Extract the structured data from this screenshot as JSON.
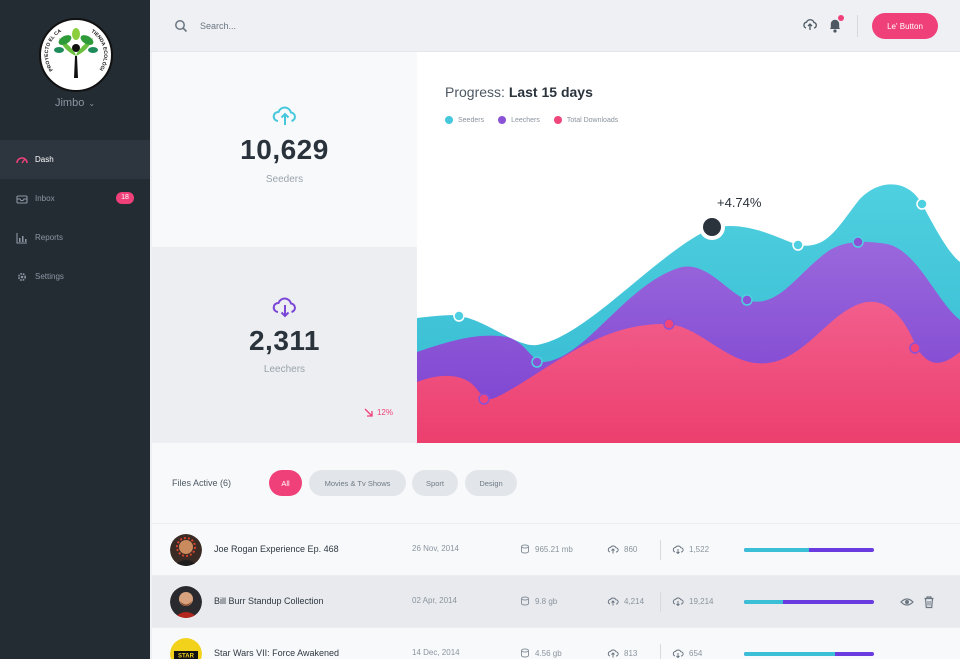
{
  "sidebar": {
    "logo_text_left": "PROYECTO EL CASAR",
    "logo_text_right": "TIENDA ECOLÓGICA",
    "username": "Jimbo",
    "items": [
      {
        "label": "Dash",
        "icon": "dashboard-icon",
        "active": true
      },
      {
        "label": "Inbox",
        "icon": "inbox-icon",
        "badge": "18"
      },
      {
        "label": "Reports",
        "icon": "reports-icon"
      },
      {
        "label": "Settings",
        "icon": "gear-icon"
      }
    ]
  },
  "topbar": {
    "search_placeholder": "Search...",
    "button_label": "Le' Button"
  },
  "stats": {
    "seeders": {
      "value": "10,629",
      "label": "Seeders"
    },
    "leechers": {
      "value": "2,311",
      "label": "Leechers",
      "trend": "12%"
    }
  },
  "chart_data": {
    "type": "area",
    "title_prefix": "Progress:",
    "title_main": "Last 15 days",
    "annotation": "+4.74%",
    "series": [
      {
        "name": "Seeders",
        "color": "#45c8dc"
      },
      {
        "name": "Leechers",
        "color": "#8a52d6"
      },
      {
        "name": "Total Downloads",
        "color": "#f0457b"
      }
    ]
  },
  "files": {
    "title": "Files Active (6)",
    "filters": [
      "All",
      "Movies & Tv Shows",
      "Sport",
      "Design"
    ],
    "rows": [
      {
        "name": "Joe Rogan Experience Ep. 468",
        "date": "26 Nov, 2014",
        "size": "965.21 mb",
        "up": "860",
        "down": "1,522",
        "progress": 0.5
      },
      {
        "name": "Bill Burr Standup Collection",
        "date": "02 Apr, 2014",
        "size": "9.8 gb",
        "up": "4,214",
        "down": "19,214",
        "progress": 0.3
      },
      {
        "name": "Star Wars VII: Force Awakened",
        "date": "14 Dec, 2014",
        "size": "4.56 gb",
        "up": "813",
        "down": "654",
        "progress": 0.7
      }
    ]
  }
}
